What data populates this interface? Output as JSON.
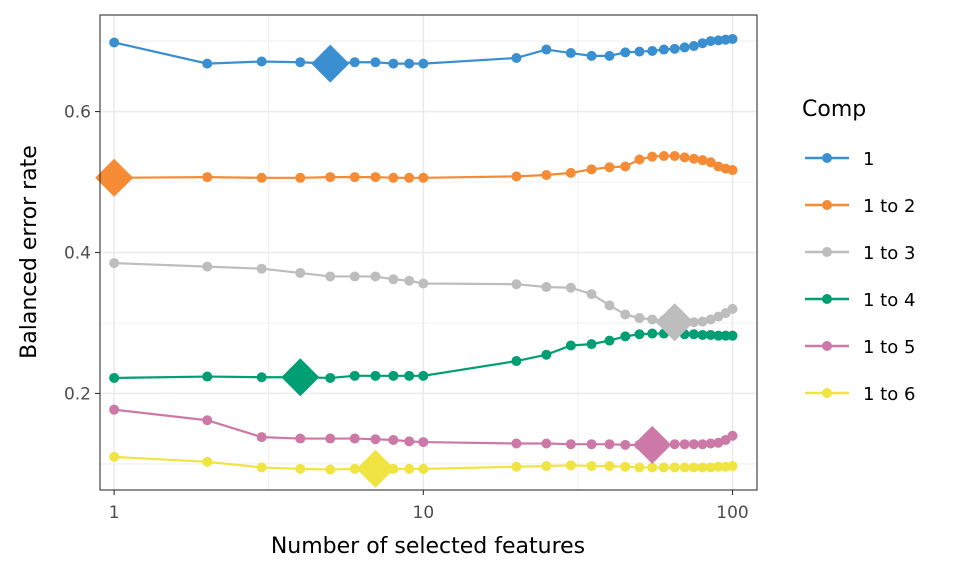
{
  "chart_data": {
    "type": "line",
    "xlabel": "Number of selected features",
    "ylabel": "Balanced error rate",
    "xscale": "log",
    "xlim": [
      0.9,
      120
    ],
    "ylim": [
      0.063,
      0.737
    ],
    "xticks": [
      1,
      10,
      100
    ],
    "xtick_labels": [
      "1",
      "10",
      "100"
    ],
    "yticks": [
      0.2,
      0.4,
      0.6
    ],
    "ytick_labels": [
      "0.2",
      "0.4",
      "0.6"
    ],
    "grid": true,
    "legend": {
      "title": "Comp",
      "position": "right"
    },
    "x": [
      1,
      2,
      3,
      4,
      5,
      6,
      7,
      8,
      9,
      10,
      20,
      25,
      30,
      35,
      40,
      45,
      50,
      55,
      60,
      65,
      70,
      75,
      80,
      85,
      90,
      95,
      100
    ],
    "series": [
      {
        "name": "1",
        "color": "#3A8FD0",
        "values": [
          0.698,
          0.668,
          0.671,
          0.67,
          0.668,
          0.67,
          0.67,
          0.668,
          0.668,
          0.668,
          0.676,
          0.688,
          0.683,
          0.679,
          0.679,
          0.684,
          0.685,
          0.686,
          0.688,
          0.689,
          0.691,
          0.693,
          0.697,
          0.7,
          0.701,
          0.702,
          0.703
        ],
        "optimal": {
          "x": 5,
          "y": 0.668
        }
      },
      {
        "name": "1 to 2",
        "color": "#F58B34",
        "values": [
          0.506,
          0.507,
          0.506,
          0.506,
          0.507,
          0.507,
          0.507,
          0.506,
          0.506,
          0.506,
          0.508,
          0.51,
          0.513,
          0.518,
          0.521,
          0.522,
          0.532,
          0.536,
          0.537,
          0.537,
          0.535,
          0.533,
          0.531,
          0.528,
          0.522,
          0.519,
          0.517
        ],
        "optimal": {
          "x": 1,
          "y": 0.506
        }
      },
      {
        "name": "1 to 3",
        "color": "#BDBDBD",
        "values": [
          0.385,
          0.38,
          0.377,
          0.371,
          0.366,
          0.366,
          0.366,
          0.362,
          0.36,
          0.356,
          0.355,
          0.351,
          0.35,
          0.341,
          0.325,
          0.312,
          0.307,
          0.305,
          0.304,
          0.302,
          0.301,
          0.301,
          0.302,
          0.305,
          0.309,
          0.314,
          0.32
        ],
        "optimal": {
          "x": 65,
          "y": 0.301
        }
      },
      {
        "name": "1 to 4",
        "color": "#009E73",
        "values": [
          0.222,
          0.224,
          0.223,
          0.223,
          0.222,
          0.225,
          0.225,
          0.225,
          0.225,
          0.225,
          0.246,
          0.255,
          0.268,
          0.27,
          0.275,
          0.281,
          0.284,
          0.285,
          0.285,
          0.285,
          0.284,
          0.284,
          0.283,
          0.283,
          0.282,
          0.282,
          0.282
        ],
        "optimal": {
          "x": 4,
          "y": 0.223
        }
      },
      {
        "name": "1 to 5",
        "color": "#CC79A7",
        "values": [
          0.177,
          0.162,
          0.138,
          0.136,
          0.136,
          0.136,
          0.135,
          0.134,
          0.132,
          0.131,
          0.129,
          0.129,
          0.128,
          0.128,
          0.128,
          0.127,
          0.127,
          0.127,
          0.127,
          0.128,
          0.128,
          0.128,
          0.128,
          0.129,
          0.13,
          0.134,
          0.14
        ],
        "optimal": {
          "x": 55,
          "y": 0.127
        }
      },
      {
        "name": "1 to 6",
        "color": "#F0E442",
        "values": [
          0.11,
          0.103,
          0.095,
          0.093,
          0.092,
          0.093,
          0.093,
          0.093,
          0.093,
          0.093,
          0.096,
          0.097,
          0.098,
          0.097,
          0.097,
          0.096,
          0.095,
          0.095,
          0.095,
          0.095,
          0.095,
          0.095,
          0.095,
          0.095,
          0.096,
          0.096,
          0.097
        ],
        "optimal": {
          "x": 7,
          "y": 0.093
        }
      }
    ]
  }
}
